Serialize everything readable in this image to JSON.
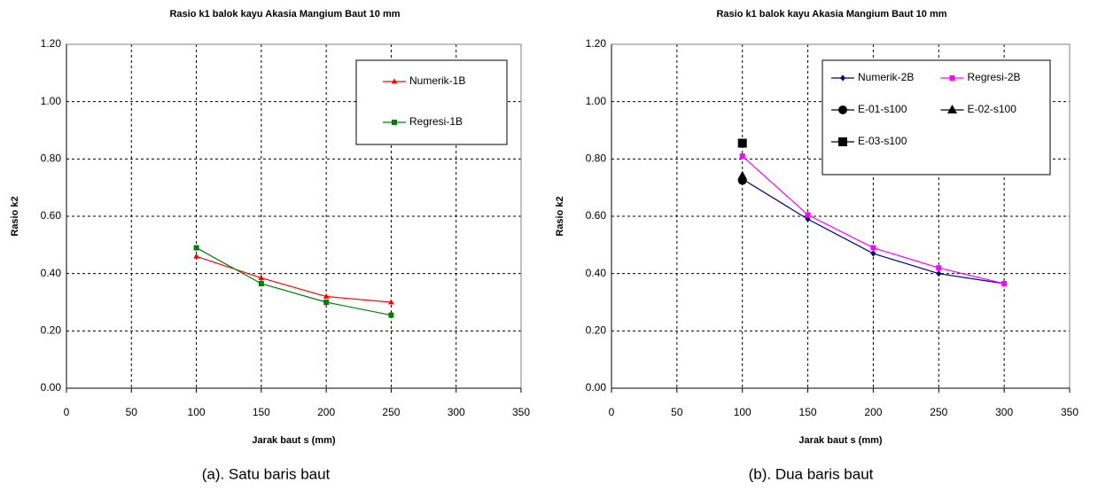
{
  "chart_data": [
    {
      "type": "line",
      "title": "Rasio k1 balok kayu Akasia Mangium Baut 10 mm",
      "x_label": "Jarak baut s (mm)",
      "y_label": "Rasio k2",
      "caption": "(a). Satu baris baut",
      "xlim": [
        0,
        350
      ],
      "xticks": [
        0,
        50,
        100,
        150,
        200,
        250,
        300,
        350
      ],
      "ylim": [
        0,
        1.2
      ],
      "yticks": [
        {
          "value": 0,
          "label": "0.00"
        },
        {
          "value": 0.2,
          "label": "0.20"
        },
        {
          "value": 0.4,
          "label": "0.40"
        },
        {
          "value": 0.6,
          "label": "0.60"
        },
        {
          "value": 0.8,
          "label": "0.80"
        },
        {
          "value": 1.0,
          "label": "1.00"
        },
        {
          "value": 1.2,
          "label": "1.20"
        }
      ],
      "grid": true,
      "legend": "upper right",
      "legend_columns": 1,
      "series": [
        {
          "name": "Numerik-1B",
          "color": "#ff0000",
          "marker": "triangle",
          "line": true,
          "x": [
            100,
            150,
            200,
            250
          ],
          "values": [
            0.46,
            0.385,
            0.32,
            0.3
          ]
        },
        {
          "name": "Regresi-1B",
          "color": "#008000",
          "marker": "square",
          "line": true,
          "x": [
            100,
            150,
            200,
            250
          ],
          "values": [
            0.49,
            0.365,
            0.3,
            0.255
          ]
        }
      ]
    },
    {
      "type": "line",
      "title": "Rasio k1 balok kayu Akasia Mangium Baut 10 mm",
      "x_label": "Jarak baut s (mm)",
      "y_label": "Rasio k2",
      "caption": "(b). Dua baris baut",
      "xlim": [
        0,
        350
      ],
      "xticks": [
        0,
        50,
        100,
        150,
        200,
        250,
        300,
        350
      ],
      "ylim": [
        0,
        1.2
      ],
      "yticks": [
        {
          "value": 0,
          "label": "0.00"
        },
        {
          "value": 0.2,
          "label": "0.20"
        },
        {
          "value": 0.4,
          "label": "0.40"
        },
        {
          "value": 0.6,
          "label": "0.60"
        },
        {
          "value": 0.8,
          "label": "0.80"
        },
        {
          "value": 1.0,
          "label": "1.00"
        },
        {
          "value": 1.2,
          "label": "1.20"
        }
      ],
      "grid": true,
      "legend": "upper right",
      "legend_columns": 2,
      "series": [
        {
          "name": "Numerik-2B",
          "color": "#000080",
          "marker": "diamond",
          "line": true,
          "x": [
            100,
            150,
            200,
            250,
            300
          ],
          "values": [
            0.73,
            0.59,
            0.47,
            0.4,
            0.365
          ]
        },
        {
          "name": "Regresi-2B",
          "color": "#ff00ff",
          "marker": "square",
          "line": true,
          "x": [
            100,
            150,
            200,
            250,
            300
          ],
          "values": [
            0.81,
            0.605,
            0.49,
            0.42,
            0.365
          ]
        },
        {
          "name": "E-01-s100",
          "color": "#000000",
          "marker": "circle",
          "line": false,
          "x": [
            100
          ],
          "values": [
            0.725
          ]
        },
        {
          "name": "E-02-s100",
          "color": "#000000",
          "marker": "triangle",
          "line": false,
          "x": [
            100
          ],
          "values": [
            0.74
          ]
        },
        {
          "name": "E-03-s100",
          "color": "#000000",
          "marker": "square",
          "line": false,
          "x": [
            100
          ],
          "values": [
            0.855
          ]
        }
      ]
    }
  ]
}
